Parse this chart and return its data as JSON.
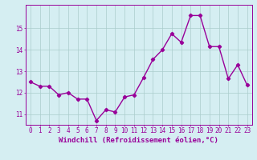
{
  "x": [
    0,
    1,
    2,
    3,
    4,
    5,
    6,
    7,
    8,
    9,
    10,
    11,
    12,
    13,
    14,
    15,
    16,
    17,
    18,
    19,
    20,
    21,
    22,
    23
  ],
  "y": [
    12.5,
    12.3,
    12.3,
    11.9,
    12.0,
    11.7,
    11.7,
    10.7,
    11.2,
    11.1,
    11.8,
    11.9,
    12.7,
    13.55,
    14.0,
    14.75,
    14.35,
    15.6,
    15.6,
    14.15,
    14.15,
    12.65,
    13.3,
    12.35
  ],
  "line_color": "#990099",
  "marker": "D",
  "marker_size": 2.2,
  "bg_color": "#d5eef2",
  "grid_color": "#aacccc",
  "xlabel": "Windchill (Refroidissement éolien,°C)",
  "ylabel": "",
  "xlim": [
    -0.5,
    23.5
  ],
  "ylim": [
    10.5,
    16.1
  ],
  "yticks": [
    11,
    12,
    13,
    14,
    15
  ],
  "xticks": [
    0,
    1,
    2,
    3,
    4,
    5,
    6,
    7,
    8,
    9,
    10,
    11,
    12,
    13,
    14,
    15,
    16,
    17,
    18,
    19,
    20,
    21,
    22,
    23
  ],
  "xlabel_fontsize": 6.5,
  "tick_fontsize": 5.5,
  "line_width": 1.0
}
